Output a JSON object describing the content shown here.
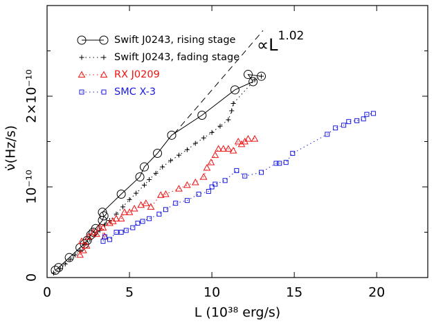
{
  "chart_data": {
    "type": "scatter",
    "x_label": "L (10³⁸ erg/s)",
    "y_label": "ν̇(Hz/s)",
    "xlim": [
      0,
      23.1
    ],
    "ylim": [
      0,
      3e-10
    ],
    "xticks": [
      0,
      5,
      10,
      15,
      20
    ],
    "yticks": [
      0,
      {
        "value": 1e-10,
        "label": "10⁻¹⁰"
      },
      {
        "value": 2e-10,
        "label": "2×10⁻¹⁰"
      }
    ],
    "yminorticks": [
      5e-11,
      1.5e-10,
      2.5e-10
    ],
    "legend": "upper left",
    "annotation": {
      "text": "∝L",
      "exponent": "1.02"
    },
    "fit": {
      "coefficient": 1.975e-11,
      "xlim": [
        7.7,
        13.1
      ],
      "line_style": "dashed",
      "color": "#000000"
    },
    "series": [
      {
        "name": "Swift J0243, rising stage",
        "color": "#000000",
        "marker": "circle",
        "line_style": "solid",
        "x": [
          0.5,
          0.7,
          1.35,
          2.0,
          2.27,
          2.44,
          2.65,
          2.8,
          2.95,
          3.36,
          3.45,
          3.36,
          4.5,
          5.63,
          5.9,
          6.7,
          7.56,
          9.4,
          11.4,
          12.5,
          12.2,
          13.0
        ],
        "values": [
          8e-12,
          1.1e-11,
          2.2e-11,
          3.3e-11,
          3.7e-11,
          4.1e-11,
          4.7e-11,
          5e-11,
          5.4e-11,
          6.3e-11,
          6.8e-11,
          7.2e-11,
          9.2e-11,
          1.11e-10,
          1.22e-10,
          1.37e-10,
          1.57e-10,
          1.79e-10,
          2.07e-10,
          2.16e-10,
          2.24e-10,
          2.22e-10
        ]
      },
      {
        "name": "Swift J0243, fading stage",
        "color": "#000000",
        "marker": "plus",
        "line_style": "dotted",
        "x": [
          0.4,
          0.8,
          1.1,
          1.4,
          1.7,
          2.0,
          2.3,
          2.6,
          2.9,
          3.2,
          3.5,
          3.8,
          4.2,
          4.6,
          5.0,
          5.4,
          5.9,
          6.2,
          6.6,
          7.0,
          7.5,
          8.0,
          8.5,
          9.0,
          9.5,
          10.0,
          10.5,
          11.0,
          11.2,
          11.3,
          12.6,
          13.0
        ],
        "values": [
          5e-12,
          1e-11,
          1.5e-11,
          2e-11,
          2.5e-11,
          3e-11,
          3.7e-11,
          4.2e-11,
          4.7e-11,
          5.2e-11,
          5.8e-11,
          6.3e-11,
          7e-11,
          7.8e-11,
          8.6e-11,
          9.3e-11,
          1.02e-10,
          1.08e-10,
          1.15e-10,
          1.22e-10,
          1.29e-10,
          1.35e-10,
          1.41e-10,
          1.48e-10,
          1.54e-10,
          1.6e-10,
          1.67e-10,
          1.74e-10,
          1.84e-10,
          1.92e-10,
          2.18e-10,
          2.22e-10
        ]
      },
      {
        "name": "RX J0209",
        "color": "#ee1111",
        "marker": "triangle",
        "line_style": "dotted",
        "x": [
          2.0,
          2.2,
          2.4,
          2.1,
          2.5,
          2.8,
          3.0,
          3.2,
          3.5,
          3.4,
          3.8,
          4.0,
          4.2,
          4.5,
          4.7,
          5.0,
          5.3,
          5.7,
          6.0,
          6.3,
          6.9,
          7.2,
          8.0,
          8.5,
          9.0,
          9.5,
          9.7,
          9.95,
          10.2,
          10.4,
          10.7,
          11.0,
          11.3,
          11.6,
          11.8,
          12.0,
          12.2,
          12.6
        ],
        "values": [
          2.5e-11,
          3e-11,
          3.5e-11,
          4e-11,
          4.5e-11,
          5e-11,
          4.8e-11,
          5.5e-11,
          4.5e-11,
          5.5e-11,
          6e-11,
          6.2e-11,
          6.5e-11,
          6.5e-11,
          7.2e-11,
          7.2e-11,
          7.6e-11,
          8e-11,
          8.2e-11,
          7.8e-11,
          9.1e-11,
          9.2e-11,
          9.8e-11,
          1.02e-10,
          1.05e-10,
          1.11e-10,
          1.21e-10,
          1.27e-10,
          1.35e-10,
          1.42e-10,
          1.42e-10,
          1.42e-10,
          1.4e-10,
          1.5e-10,
          1.47e-10,
          1.5e-10,
          1.53e-10,
          1.53e-10
        ]
      },
      {
        "name": "SMC X-3",
        "color": "#1a1adf",
        "marker": "square",
        "line_style": "dotted",
        "x": [
          3.4,
          3.5,
          3.8,
          4.2,
          4.5,
          4.8,
          5.2,
          5.5,
          5.8,
          6.2,
          6.8,
          7.2,
          7.8,
          8.5,
          9.2,
          9.8,
          10.0,
          10.2,
          10.8,
          11.5,
          12.0,
          13.0,
          13.9,
          14.1,
          14.5,
          14.9,
          17.0,
          17.5,
          18.0,
          18.3,
          18.8,
          19.2,
          19.4,
          19.8
        ],
        "values": [
          4e-11,
          4.5e-11,
          4.2e-11,
          5e-11,
          5e-11,
          5.2e-11,
          5.5e-11,
          6e-11,
          6.2e-11,
          6.5e-11,
          7e-11,
          7.5e-11,
          8.2e-11,
          8.5e-11,
          9.2e-11,
          9.5e-11,
          1e-10,
          1.03e-10,
          1.07e-10,
          1.18e-10,
          1.12e-10,
          1.16e-10,
          1.26e-10,
          1.26e-10,
          1.27e-10,
          1.37e-10,
          1.58e-10,
          1.65e-10,
          1.68e-10,
          1.72e-10,
          1.73e-10,
          1.75e-10,
          1.8e-10,
          1.81e-10
        ]
      }
    ]
  }
}
